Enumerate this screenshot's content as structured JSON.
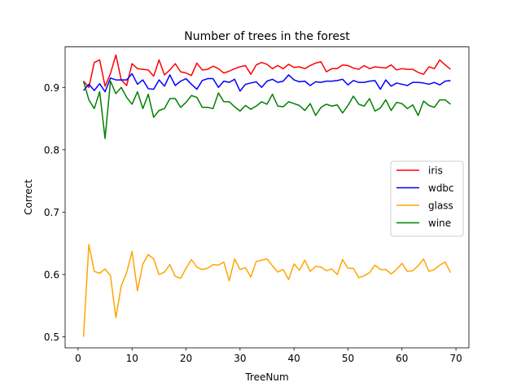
{
  "chart_data": {
    "type": "line",
    "title": "Number of trees in the forest",
    "xlabel": "TreeNum",
    "ylabel": "Correct",
    "xlim": [
      -2.4,
      72.4
    ],
    "ylim": [
      0.4825,
      0.965
    ],
    "xticks": [
      0,
      10,
      20,
      30,
      40,
      50,
      60,
      70
    ],
    "yticks": [
      0.5,
      0.6,
      0.7,
      0.8,
      0.9
    ],
    "ytick_labels": [
      "0.5",
      "0.6",
      "0.7",
      "0.8",
      "0.9"
    ],
    "grid": false,
    "legend_position": "center-right",
    "x": [
      1,
      2,
      3,
      4,
      5,
      6,
      7,
      8,
      9,
      10,
      11,
      12,
      13,
      14,
      15,
      16,
      17,
      18,
      19,
      20,
      21,
      22,
      23,
      24,
      25,
      26,
      27,
      28,
      29,
      30,
      31,
      32,
      33,
      34,
      35,
      36,
      37,
      38,
      39,
      40,
      41,
      42,
      43,
      44,
      45,
      46,
      47,
      48,
      49,
      50,
      51,
      52,
      53,
      54,
      55,
      56,
      57,
      58,
      59,
      60,
      61,
      62,
      63,
      64,
      65,
      66,
      67,
      68,
      69
    ],
    "series": [
      {
        "name": "iris",
        "color": "#ff0000",
        "values": [
          0.91,
          0.9,
          0.94,
          0.944,
          0.902,
          0.922,
          0.952,
          0.912,
          0.903,
          0.938,
          0.93,
          0.929,
          0.928,
          0.918,
          0.944,
          0.92,
          0.928,
          0.938,
          0.925,
          0.923,
          0.919,
          0.939,
          0.928,
          0.929,
          0.934,
          0.93,
          0.923,
          0.926,
          0.93,
          0.933,
          0.935,
          0.921,
          0.936,
          0.94,
          0.937,
          0.93,
          0.935,
          0.93,
          0.937,
          0.932,
          0.933,
          0.93,
          0.935,
          0.939,
          0.941,
          0.925,
          0.93,
          0.93,
          0.936,
          0.935,
          0.931,
          0.929,
          0.935,
          0.93,
          0.933,
          0.932,
          0.931,
          0.936,
          0.928,
          0.93,
          0.929,
          0.929,
          0.924,
          0.921,
          0.933,
          0.93,
          0.944,
          0.936,
          0.929
        ]
      },
      {
        "name": "wdbc",
        "color": "#0000ff",
        "values": [
          0.895,
          0.905,
          0.895,
          0.906,
          0.893,
          0.915,
          0.912,
          0.912,
          0.912,
          0.922,
          0.905,
          0.912,
          0.898,
          0.897,
          0.912,
          0.902,
          0.92,
          0.903,
          0.91,
          0.914,
          0.905,
          0.897,
          0.911,
          0.914,
          0.914,
          0.9,
          0.91,
          0.908,
          0.913,
          0.894,
          0.905,
          0.907,
          0.909,
          0.9,
          0.91,
          0.913,
          0.908,
          0.91,
          0.92,
          0.912,
          0.909,
          0.91,
          0.903,
          0.909,
          0.908,
          0.91,
          0.91,
          0.911,
          0.913,
          0.904,
          0.911,
          0.908,
          0.908,
          0.91,
          0.911,
          0.897,
          0.912,
          0.902,
          0.907,
          0.905,
          0.903,
          0.908,
          0.908,
          0.907,
          0.905,
          0.908,
          0.904,
          0.91,
          0.911
        ]
      },
      {
        "name": "glass",
        "color": "#ffa500",
        "values": [
          0.5,
          0.648,
          0.605,
          0.602,
          0.609,
          0.598,
          0.531,
          0.582,
          0.603,
          0.637,
          0.574,
          0.617,
          0.632,
          0.625,
          0.6,
          0.604,
          0.616,
          0.597,
          0.594,
          0.61,
          0.624,
          0.612,
          0.608,
          0.61,
          0.616,
          0.615,
          0.62,
          0.59,
          0.625,
          0.608,
          0.611,
          0.596,
          0.621,
          0.623,
          0.625,
          0.614,
          0.604,
          0.608,
          0.592,
          0.617,
          0.607,
          0.623,
          0.605,
          0.613,
          0.612,
          0.606,
          0.609,
          0.6,
          0.624,
          0.61,
          0.61,
          0.595,
          0.598,
          0.603,
          0.615,
          0.608,
          0.608,
          0.601,
          0.608,
          0.618,
          0.605,
          0.606,
          0.614,
          0.625,
          0.605,
          0.608,
          0.615,
          0.62,
          0.603
        ]
      },
      {
        "name": "wine",
        "color": "#008000",
        "values": [
          0.91,
          0.88,
          0.866,
          0.893,
          0.818,
          0.91,
          0.89,
          0.9,
          0.884,
          0.873,
          0.893,
          0.866,
          0.889,
          0.852,
          0.863,
          0.866,
          0.882,
          0.882,
          0.868,
          0.876,
          0.887,
          0.884,
          0.868,
          0.868,
          0.866,
          0.891,
          0.877,
          0.877,
          0.869,
          0.862,
          0.871,
          0.865,
          0.87,
          0.877,
          0.873,
          0.889,
          0.87,
          0.869,
          0.877,
          0.874,
          0.871,
          0.863,
          0.874,
          0.855,
          0.868,
          0.873,
          0.87,
          0.872,
          0.859,
          0.871,
          0.886,
          0.873,
          0.87,
          0.882,
          0.862,
          0.867,
          0.88,
          0.863,
          0.876,
          0.874,
          0.866,
          0.872,
          0.855,
          0.878,
          0.871,
          0.868,
          0.88,
          0.88,
          0.873
        ]
      }
    ]
  }
}
